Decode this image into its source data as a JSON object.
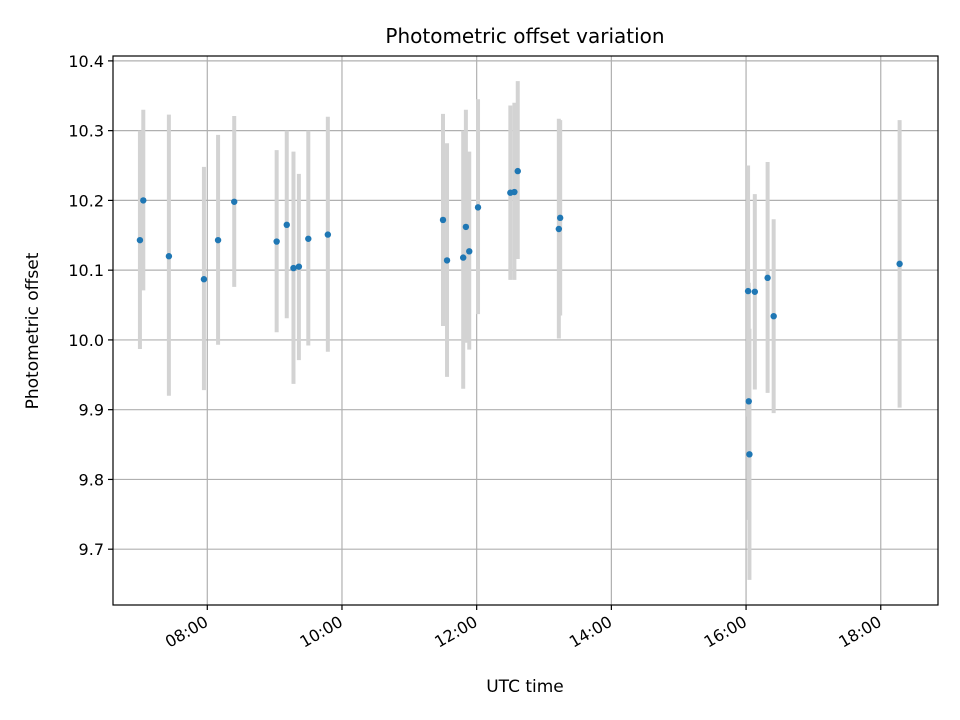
{
  "chart_data": {
    "type": "scatter",
    "title": "Photometric offset variation",
    "xlabel": "UTC time",
    "ylabel": "Photometric offset",
    "x_axis": "time (hours, UTC)",
    "xlim": [
      6.6,
      18.85
    ],
    "ylim": [
      9.62,
      10.407
    ],
    "grid": true,
    "x_ticks": [
      {
        "value": 8,
        "label": "08:00"
      },
      {
        "value": 10,
        "label": "10:00"
      },
      {
        "value": 12,
        "label": "12:00"
      },
      {
        "value": 14,
        "label": "14:00"
      },
      {
        "value": 16,
        "label": "16:00"
      },
      {
        "value": 18,
        "label": "18:00"
      }
    ],
    "y_ticks": [
      {
        "value": 9.7,
        "label": "9.7"
      },
      {
        "value": 9.8,
        "label": "9.8"
      },
      {
        "value": 9.9,
        "label": "9.9"
      },
      {
        "value": 10.0,
        "label": "10.0"
      },
      {
        "value": 10.1,
        "label": "10.1"
      },
      {
        "value": 10.2,
        "label": "10.2"
      },
      {
        "value": 10.3,
        "label": "10.3"
      },
      {
        "value": 10.4,
        "label": "10.4"
      }
    ],
    "marker_color": "#1f77b4",
    "errorbar_color": "#d3d3d3",
    "points": [
      {
        "x": 7.0,
        "y": 10.143,
        "err_low": 9.987,
        "err_high": 10.3
      },
      {
        "x": 7.05,
        "y": 10.2,
        "err_low": 10.071,
        "err_high": 10.33
      },
      {
        "x": 7.43,
        "y": 10.12,
        "err_low": 9.92,
        "err_high": 10.323
      },
      {
        "x": 7.95,
        "y": 10.087,
        "err_low": 9.928,
        "err_high": 10.248
      },
      {
        "x": 8.16,
        "y": 10.143,
        "err_low": 9.993,
        "err_high": 10.294
      },
      {
        "x": 8.4,
        "y": 10.198,
        "err_low": 10.076,
        "err_high": 10.321
      },
      {
        "x": 9.03,
        "y": 10.141,
        "err_low": 10.011,
        "err_high": 10.272
      },
      {
        "x": 9.18,
        "y": 10.165,
        "err_low": 10.031,
        "err_high": 10.3
      },
      {
        "x": 9.28,
        "y": 10.103,
        "err_low": 9.937,
        "err_high": 10.27
      },
      {
        "x": 9.36,
        "y": 10.105,
        "err_low": 9.971,
        "err_high": 10.238
      },
      {
        "x": 9.5,
        "y": 10.145,
        "err_low": 9.992,
        "err_high": 10.3
      },
      {
        "x": 9.79,
        "y": 10.151,
        "err_low": 9.983,
        "err_high": 10.32
      },
      {
        "x": 11.5,
        "y": 10.172,
        "err_low": 10.02,
        "err_high": 10.324
      },
      {
        "x": 11.56,
        "y": 10.114,
        "err_low": 9.947,
        "err_high": 10.282
      },
      {
        "x": 11.8,
        "y": 10.118,
        "err_low": 9.93,
        "err_high": 10.3
      },
      {
        "x": 11.84,
        "y": 10.162,
        "err_low": 9.996,
        "err_high": 10.33
      },
      {
        "x": 11.89,
        "y": 10.127,
        "err_low": 9.986,
        "err_high": 10.27
      },
      {
        "x": 12.02,
        "y": 10.19,
        "err_low": 10.037,
        "err_high": 10.345
      },
      {
        "x": 12.5,
        "y": 10.211,
        "err_low": 10.086,
        "err_high": 10.336
      },
      {
        "x": 12.56,
        "y": 10.212,
        "err_low": 10.086,
        "err_high": 10.34
      },
      {
        "x": 12.61,
        "y": 10.242,
        "err_low": 10.116,
        "err_high": 10.371
      },
      {
        "x": 13.22,
        "y": 10.159,
        "err_low": 10.002,
        "err_high": 10.317
      },
      {
        "x": 13.24,
        "y": 10.175,
        "err_low": 10.035,
        "err_high": 10.315
      },
      {
        "x": 16.03,
        "y": 10.07,
        "err_low": 9.89,
        "err_high": 10.25
      },
      {
        "x": 16.04,
        "y": 9.912,
        "err_low": 9.742,
        "err_high": 10.082
      },
      {
        "x": 16.05,
        "y": 9.836,
        "err_low": 9.656,
        "err_high": 10.016
      },
      {
        "x": 16.13,
        "y": 10.069,
        "err_low": 9.929,
        "err_high": 10.209
      },
      {
        "x": 16.32,
        "y": 10.089,
        "err_low": 9.924,
        "err_high": 10.255
      },
      {
        "x": 16.41,
        "y": 10.034,
        "err_low": 9.895,
        "err_high": 10.173
      },
      {
        "x": 18.28,
        "y": 10.109,
        "err_low": 9.903,
        "err_high": 10.315
      }
    ]
  }
}
